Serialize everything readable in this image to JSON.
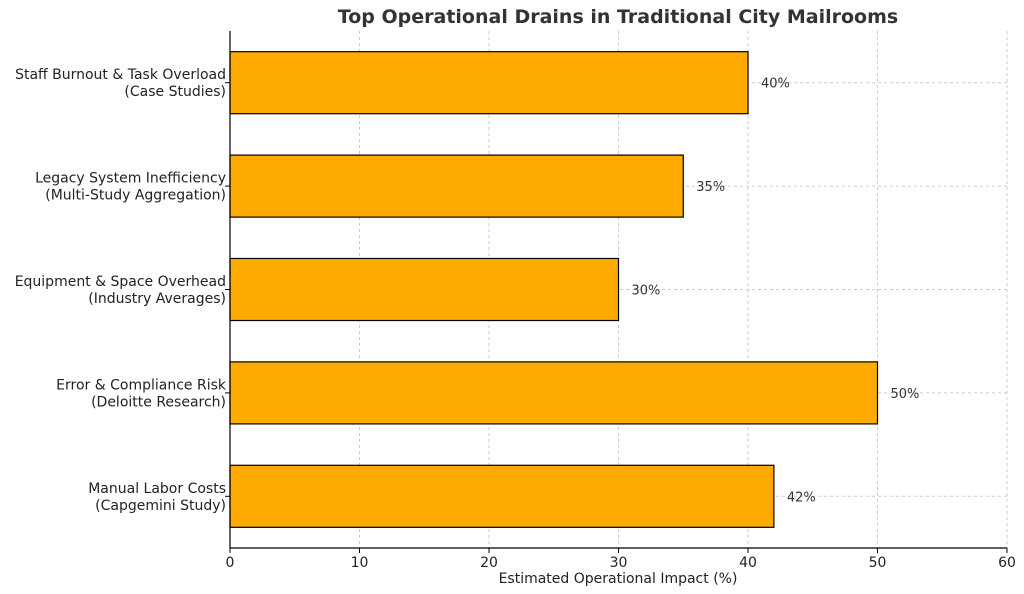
{
  "chart_data": {
    "type": "bar",
    "orientation": "horizontal",
    "title": "Top Operational Drains in Traditional City Mailrooms",
    "xlabel": "Estimated Operational Impact (%)",
    "ylabel": "",
    "xlim": [
      0,
      60
    ],
    "xticks": [
      0,
      10,
      20,
      30,
      40,
      50,
      60
    ],
    "grid": true,
    "bar_color": "#FFAA00",
    "bar_edge_color": "#000000",
    "categories": [
      [
        "Staff Burnout & Task Overload",
        "(Case Studies)"
      ],
      [
        "Legacy System Inefficiency",
        "(Multi-Study Aggregation)"
      ],
      [
        "Equipment & Space Overhead",
        "(Industry Averages)"
      ],
      [
        "Error & Compliance Risk",
        "(Deloitte Research)"
      ],
      [
        "Manual Labor Costs",
        "(Capgemini Study)"
      ]
    ],
    "values": [
      40,
      35,
      30,
      50,
      42
    ],
    "data_labels": [
      "40%",
      "35%",
      "30%",
      "50%",
      "42%"
    ]
  }
}
